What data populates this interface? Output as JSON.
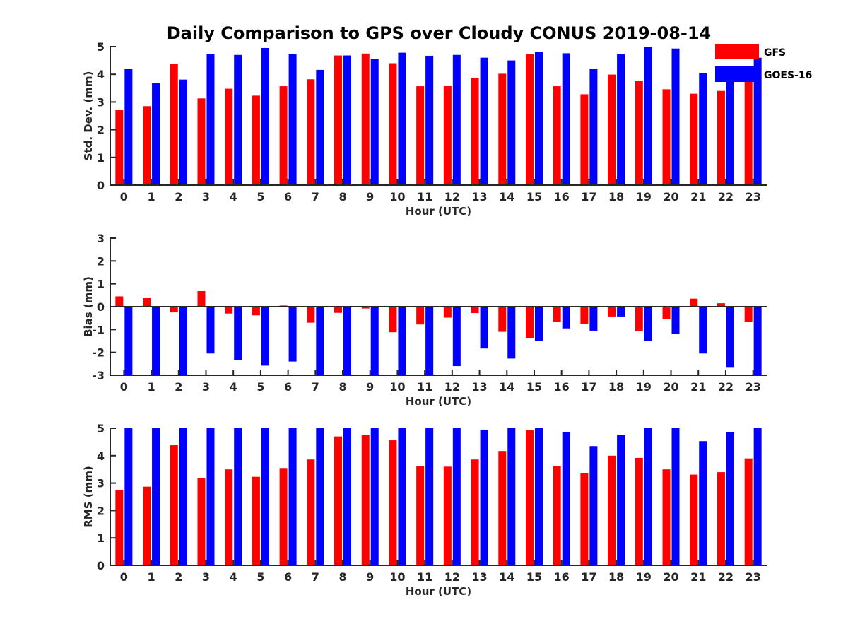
{
  "title": "Daily Comparison to GPS over Cloudy CONUS 2019-08-14",
  "colors": {
    "GFS": "#ff0000",
    "GOES-16": "#0000ff",
    "axis": "#262626"
  },
  "chart_data": [
    {
      "type": "bar",
      "title": "Daily Comparison to GPS over Cloudy CONUS 2019-08-14",
      "xlabel": "Hour (UTC)",
      "ylabel": "Std. Dev. (mm)",
      "ylim": [
        0,
        5
      ],
      "yticks": [
        0,
        1,
        2,
        3,
        4,
        5
      ],
      "categories": [
        "0",
        "1",
        "2",
        "3",
        "4",
        "5",
        "6",
        "7",
        "8",
        "9",
        "10",
        "11",
        "12",
        "13",
        "14",
        "15",
        "16",
        "17",
        "18",
        "19",
        "20",
        "21",
        "22",
        "23"
      ],
      "legend": {
        "placement": "top-right",
        "entries": [
          "GFS",
          "GOES-16"
        ]
      },
      "series": [
        {
          "name": "GFS",
          "values": [
            2.72,
            2.85,
            4.38,
            3.13,
            3.48,
            3.23,
            3.57,
            3.82,
            4.68,
            4.75,
            4.4,
            3.57,
            3.59,
            3.87,
            4.02,
            4.73,
            3.57,
            3.28,
            3.99,
            3.76,
            3.46,
            3.3,
            3.4,
            3.9
          ]
        },
        {
          "name": "GOES-16",
          "values": [
            4.19,
            3.68,
            3.81,
            4.73,
            4.7,
            4.95,
            4.73,
            4.16,
            4.68,
            4.55,
            4.78,
            4.67,
            4.7,
            4.6,
            4.5,
            4.8,
            4.76,
            4.21,
            4.73,
            5.0,
            4.93,
            4.05,
            4.04,
            4.6
          ]
        }
      ]
    },
    {
      "type": "bar",
      "xlabel": "Hour (UTC)",
      "ylabel": "Bias (mm)",
      "ylim": [
        -3,
        3
      ],
      "yticks": [
        -3,
        -2,
        -1,
        0,
        1,
        2,
        3
      ],
      "zero_line": true,
      "categories": [
        "0",
        "1",
        "2",
        "3",
        "4",
        "5",
        "6",
        "7",
        "8",
        "9",
        "10",
        "11",
        "12",
        "13",
        "14",
        "15",
        "16",
        "17",
        "18",
        "19",
        "20",
        "21",
        "22",
        "23"
      ],
      "series": [
        {
          "name": "GFS",
          "values": [
            0.45,
            0.4,
            -0.25,
            0.68,
            -0.3,
            -0.38,
            0.05,
            -0.7,
            -0.27,
            -0.08,
            -1.12,
            -0.78,
            -0.48,
            -0.28,
            -1.1,
            -1.38,
            -0.65,
            -0.75,
            -0.43,
            -1.07,
            -0.55,
            0.35,
            0.15,
            -0.68
          ]
        },
        {
          "name": "GOES-16",
          "values": [
            -3.0,
            -3.0,
            -3.0,
            -2.05,
            -2.33,
            -2.58,
            -2.4,
            -3.0,
            -3.0,
            -3.0,
            -3.0,
            -3.0,
            -2.6,
            -1.83,
            -2.27,
            -1.5,
            -0.95,
            -1.05,
            -0.43,
            -1.5,
            -1.2,
            -2.05,
            -2.67,
            -3.0
          ]
        }
      ]
    },
    {
      "type": "bar",
      "xlabel": "Hour (UTC)",
      "ylabel": "RMS (mm)",
      "ylim": [
        0,
        5
      ],
      "yticks": [
        0,
        1,
        2,
        3,
        4,
        5
      ],
      "categories": [
        "0",
        "1",
        "2",
        "3",
        "4",
        "5",
        "6",
        "7",
        "8",
        "9",
        "10",
        "11",
        "12",
        "13",
        "14",
        "15",
        "16",
        "17",
        "18",
        "19",
        "20",
        "21",
        "22",
        "23"
      ],
      "series": [
        {
          "name": "GFS",
          "values": [
            2.75,
            2.87,
            4.38,
            3.18,
            3.5,
            3.23,
            3.55,
            3.86,
            4.7,
            4.76,
            4.56,
            3.62,
            3.6,
            3.86,
            4.17,
            4.94,
            3.62,
            3.37,
            4.0,
            3.92,
            3.5,
            3.31,
            3.4,
            3.9
          ]
        },
        {
          "name": "GOES-16",
          "values": [
            5.0,
            5.0,
            5.0,
            5.0,
            5.0,
            5.0,
            5.0,
            5.0,
            5.0,
            5.0,
            5.0,
            5.0,
            5.0,
            4.95,
            5.0,
            5.0,
            4.85,
            4.35,
            4.75,
            5.0,
            5.0,
            4.53,
            4.85,
            5.0
          ]
        }
      ]
    }
  ]
}
